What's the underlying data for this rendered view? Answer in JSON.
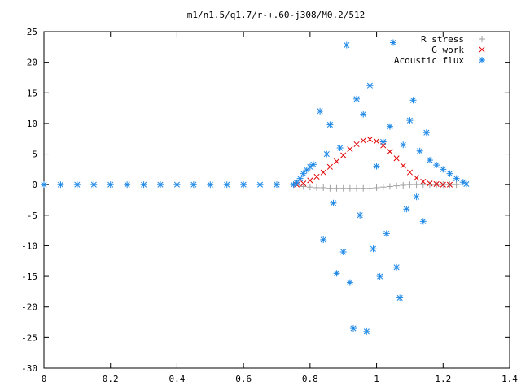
{
  "chart_data": {
    "type": "scatter",
    "title": "m1/n1.5/q1.7/r-+.60-j308/M0.2/512",
    "xlabel": "",
    "ylabel": "",
    "xlim": [
      0,
      1.4
    ],
    "ylim": [
      -30,
      25
    ],
    "x_ticks": [
      "0",
      "0.2",
      "0.4",
      "0.6",
      "0.8",
      "1",
      "1.2",
      "1.4"
    ],
    "y_ticks": [
      "25",
      "20",
      "15",
      "10",
      "5",
      "0",
      "-5",
      "-10",
      "-15",
      "-20",
      "-25",
      "-30"
    ],
    "legend_position": "top-right",
    "series": [
      {
        "name": "R stress",
        "marker": "plus",
        "color": "#a0a0a0",
        "points": [
          [
            0.78,
            -0.3
          ],
          [
            0.8,
            -0.4
          ],
          [
            0.82,
            -0.5
          ],
          [
            0.84,
            -0.5
          ],
          [
            0.86,
            -0.6
          ],
          [
            0.88,
            -0.6
          ],
          [
            0.9,
            -0.6
          ],
          [
            0.92,
            -0.6
          ],
          [
            0.94,
            -0.6
          ],
          [
            0.96,
            -0.6
          ],
          [
            0.98,
            -0.6
          ],
          [
            1.0,
            -0.5
          ],
          [
            1.02,
            -0.4
          ],
          [
            1.04,
            -0.3
          ],
          [
            1.06,
            -0.2
          ],
          [
            1.08,
            -0.1
          ],
          [
            1.1,
            0.0
          ],
          [
            1.12,
            0.0
          ],
          [
            1.14,
            0.0
          ],
          [
            1.16,
            0.0
          ],
          [
            1.18,
            0.0
          ],
          [
            1.2,
            0.0
          ],
          [
            1.22,
            0.0
          ],
          [
            1.24,
            0.0
          ]
        ]
      },
      {
        "name": "G work",
        "marker": "cross",
        "color": "#e00000",
        "points": [
          [
            0.76,
            0.0
          ],
          [
            0.78,
            0.2
          ],
          [
            0.8,
            0.7
          ],
          [
            0.82,
            1.3
          ],
          [
            0.84,
            2.0
          ],
          [
            0.86,
            2.9
          ],
          [
            0.88,
            3.8
          ],
          [
            0.9,
            4.8
          ],
          [
            0.92,
            5.8
          ],
          [
            0.94,
            6.6
          ],
          [
            0.96,
            7.2
          ],
          [
            0.98,
            7.4
          ],
          [
            1.0,
            7.1
          ],
          [
            1.02,
            6.4
          ],
          [
            1.04,
            5.4
          ],
          [
            1.06,
            4.3
          ],
          [
            1.08,
            3.1
          ],
          [
            1.1,
            2.0
          ],
          [
            1.12,
            1.1
          ],
          [
            1.14,
            0.5
          ],
          [
            1.16,
            0.2
          ],
          [
            1.18,
            0.1
          ],
          [
            1.2,
            0.0
          ],
          [
            1.22,
            0.0
          ]
        ]
      },
      {
        "name": "Acoustic flux",
        "marker": "star",
        "color": "#1e88e5",
        "points": [
          [
            0.0,
            0.0
          ],
          [
            0.05,
            0.0
          ],
          [
            0.1,
            0.0
          ],
          [
            0.15,
            0.0
          ],
          [
            0.2,
            0.0
          ],
          [
            0.25,
            0.0
          ],
          [
            0.3,
            0.0
          ],
          [
            0.35,
            0.0
          ],
          [
            0.4,
            0.0
          ],
          [
            0.45,
            0.0
          ],
          [
            0.5,
            0.0
          ],
          [
            0.55,
            0.0
          ],
          [
            0.6,
            0.0
          ],
          [
            0.65,
            0.0
          ],
          [
            0.7,
            0.0
          ],
          [
            0.75,
            0.0
          ],
          [
            0.76,
            0.3
          ],
          [
            0.77,
            1.0
          ],
          [
            0.78,
            1.8
          ],
          [
            0.79,
            2.4
          ],
          [
            0.8,
            2.9
          ],
          [
            0.81,
            3.3
          ],
          [
            0.83,
            12.0
          ],
          [
            0.84,
            -9.0
          ],
          [
            0.85,
            5.0
          ],
          [
            0.86,
            9.8
          ],
          [
            0.87,
            -3.0
          ],
          [
            0.88,
            -14.5
          ],
          [
            0.89,
            6.0
          ],
          [
            0.9,
            -11.0
          ],
          [
            0.91,
            22.8
          ],
          [
            0.92,
            -16.0
          ],
          [
            0.93,
            -23.5
          ],
          [
            0.94,
            14.0
          ],
          [
            0.95,
            -5.0
          ],
          [
            0.96,
            11.5
          ],
          [
            0.97,
            -24.0
          ],
          [
            0.98,
            16.2
          ],
          [
            0.99,
            -10.5
          ],
          [
            1.0,
            3.0
          ],
          [
            1.01,
            -15.0
          ],
          [
            1.02,
            7.0
          ],
          [
            1.03,
            -8.0
          ],
          [
            1.04,
            9.5
          ],
          [
            1.05,
            23.2
          ],
          [
            1.06,
            -13.5
          ],
          [
            1.07,
            -18.5
          ],
          [
            1.08,
            6.5
          ],
          [
            1.09,
            -4.0
          ],
          [
            1.1,
            10.5
          ],
          [
            1.11,
            13.8
          ],
          [
            1.12,
            -2.0
          ],
          [
            1.13,
            5.5
          ],
          [
            1.14,
            -6.0
          ],
          [
            1.15,
            8.5
          ],
          [
            1.16,
            4.0
          ],
          [
            1.18,
            3.2
          ],
          [
            1.2,
            2.5
          ],
          [
            1.22,
            1.8
          ],
          [
            1.24,
            1.0
          ],
          [
            1.26,
            0.4
          ],
          [
            1.27,
            0.1
          ]
        ]
      }
    ]
  }
}
